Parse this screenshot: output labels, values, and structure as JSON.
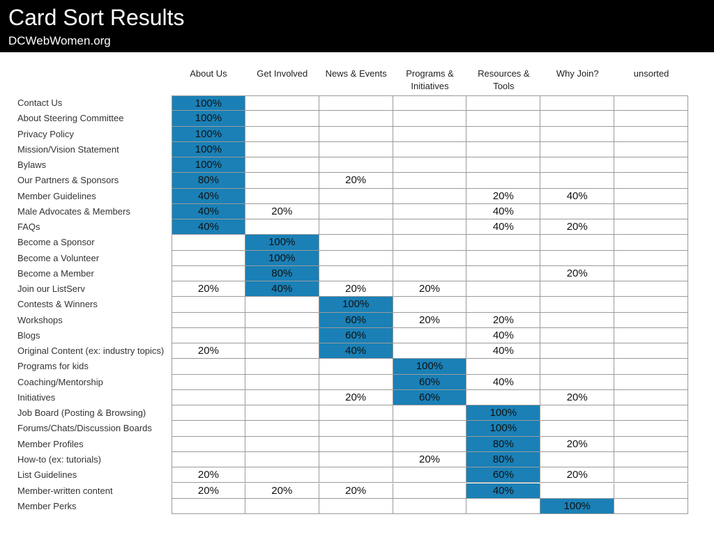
{
  "header": {
    "title": "Card Sort Results",
    "subtitle": "DCWebWomen.org"
  },
  "colors": {
    "header_bg": "#000000",
    "highlight": "#1a80b6",
    "grid_line": "#9a9a9a"
  },
  "columns": [
    "About Us",
    "Get Involved",
    "News & Events",
    "Programs &\nInitiatives",
    "Resources &\nTools",
    "Why Join?",
    "unsorted"
  ],
  "rows": [
    {
      "label": "Contact Us",
      "cells": [
        "100%",
        "",
        "",
        "",
        "",
        "",
        ""
      ],
      "highlight": 0
    },
    {
      "label": "About Steering Committee",
      "cells": [
        "100%",
        "",
        "",
        "",
        "",
        "",
        ""
      ],
      "highlight": 0
    },
    {
      "label": "Privacy Policy",
      "cells": [
        "100%",
        "",
        "",
        "",
        "",
        "",
        ""
      ],
      "highlight": 0
    },
    {
      "label": "Mission/Vision Statement",
      "cells": [
        "100%",
        "",
        "",
        "",
        "",
        "",
        ""
      ],
      "highlight": 0
    },
    {
      "label": "Bylaws",
      "cells": [
        "100%",
        "",
        "",
        "",
        "",
        "",
        ""
      ],
      "highlight": 0
    },
    {
      "label": "Our Partners & Sponsors",
      "cells": [
        "80%",
        "",
        "20%",
        "",
        "",
        "",
        ""
      ],
      "highlight": 0
    },
    {
      "label": "Member Guidelines",
      "cells": [
        "40%",
        "",
        "",
        "",
        "20%",
        "40%",
        ""
      ],
      "highlight": 0
    },
    {
      "label": "Male Advocates & Members",
      "cells": [
        "40%",
        "20%",
        "",
        "",
        "40%",
        "",
        ""
      ],
      "highlight": 0
    },
    {
      "label": "FAQs",
      "cells": [
        "40%",
        "",
        "",
        "",
        "40%",
        "20%",
        ""
      ],
      "highlight": 0
    },
    {
      "label": "Become a Sponsor",
      "cells": [
        "",
        "100%",
        "",
        "",
        "",
        "",
        ""
      ],
      "highlight": 1
    },
    {
      "label": "Become a Volunteer",
      "cells": [
        "",
        "100%",
        "",
        "",
        "",
        "",
        ""
      ],
      "highlight": 1
    },
    {
      "label": "Become a Member",
      "cells": [
        "",
        "80%",
        "",
        "",
        "",
        "20%",
        ""
      ],
      "highlight": 1
    },
    {
      "label": "Join our ListServ",
      "cells": [
        "20%",
        "40%",
        "20%",
        "20%",
        "",
        "",
        ""
      ],
      "highlight": 1
    },
    {
      "label": "Contests & Winners",
      "cells": [
        "",
        "",
        "100%",
        "",
        "",
        "",
        ""
      ],
      "highlight": 2
    },
    {
      "label": "Workshops",
      "cells": [
        "",
        "",
        "60%",
        "20%",
        "20%",
        "",
        ""
      ],
      "highlight": 2
    },
    {
      "label": "Blogs",
      "cells": [
        "",
        "",
        "60%",
        "",
        "40%",
        "",
        ""
      ],
      "highlight": 2
    },
    {
      "label": "Original Content (ex: industry topics)",
      "cells": [
        "20%",
        "",
        "40%",
        "",
        "40%",
        "",
        ""
      ],
      "highlight": 2
    },
    {
      "label": "Programs for kids",
      "cells": [
        "",
        "",
        "",
        "100%",
        "",
        "",
        ""
      ],
      "highlight": 3
    },
    {
      "label": "Coaching/Mentorship",
      "cells": [
        "",
        "",
        "",
        "60%",
        "40%",
        "",
        ""
      ],
      "highlight": 3
    },
    {
      "label": "Initiatives",
      "cells": [
        "",
        "",
        "20%",
        "60%",
        "",
        "20%",
        ""
      ],
      "highlight": 3
    },
    {
      "label": "Job Board (Posting & Browsing)",
      "cells": [
        "",
        "",
        "",
        "",
        "100%",
        "",
        ""
      ],
      "highlight": 4
    },
    {
      "label": "Forums/Chats/Discussion Boards",
      "cells": [
        "",
        "",
        "",
        "",
        "100%",
        "",
        ""
      ],
      "highlight": 4
    },
    {
      "label": "Member Profiles",
      "cells": [
        "",
        "",
        "",
        "",
        "80%",
        "20%",
        ""
      ],
      "highlight": 4
    },
    {
      "label": "How-to (ex: tutorials)",
      "cells": [
        "",
        "",
        "",
        "20%",
        "80%",
        "",
        ""
      ],
      "highlight": 4
    },
    {
      "label": "List Guidelines",
      "cells": [
        "20%",
        "",
        "",
        "",
        "60%",
        "20%",
        ""
      ],
      "highlight": 4
    },
    {
      "label": "Member-written content",
      "cells": [
        "20%",
        "20%",
        "20%",
        "",
        "40%",
        "",
        ""
      ],
      "highlight": 4
    },
    {
      "label": "Member Perks",
      "cells": [
        "",
        "",
        "",
        "",
        "",
        "100%",
        ""
      ],
      "highlight": 5
    }
  ]
}
